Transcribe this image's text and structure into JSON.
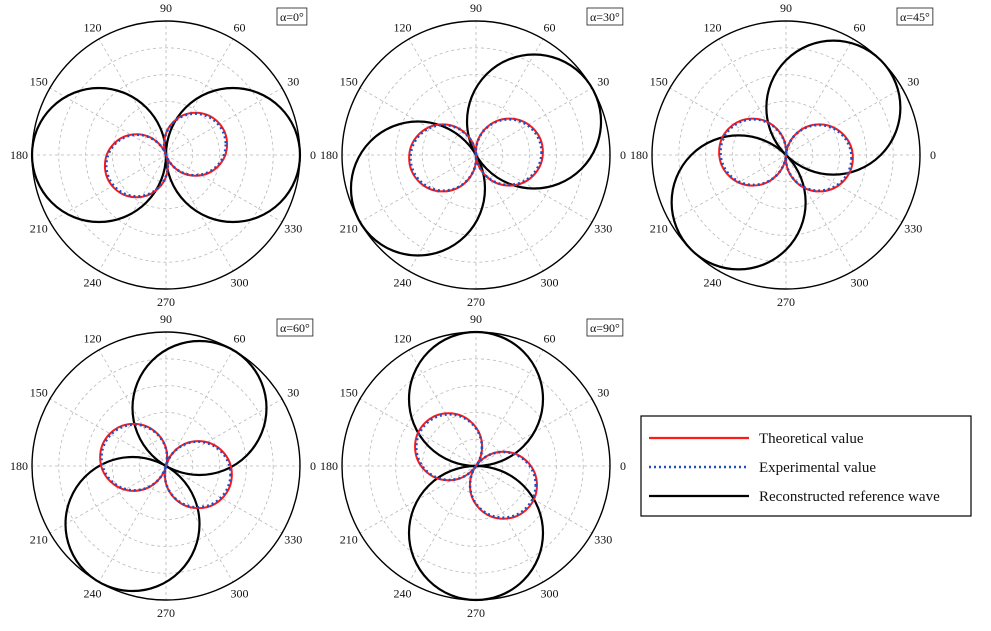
{
  "chart_data": [
    {
      "type": "polar",
      "title": "α=0°",
      "angle_ticks": [
        "0",
        "30",
        "60",
        "90",
        "120",
        "150",
        "180",
        "210",
        "240",
        "270",
        "300",
        "330"
      ],
      "grid": true,
      "series": [
        {
          "key": "reference",
          "lobes": [
            {
              "angle_deg": 0,
              "diameter": 1.0
            },
            {
              "angle_deg": 180,
              "diameter": 1.0
            }
          ]
        },
        {
          "key": "theoretical",
          "lobes": [
            {
              "angle_deg": 20,
              "diameter": 0.47
            },
            {
              "angle_deg": 200,
              "diameter": 0.47
            }
          ]
        },
        {
          "key": "experimental",
          "lobes": [
            {
              "angle_deg": 20,
              "diameter": 0.46
            },
            {
              "angle_deg": 200,
              "diameter": 0.46
            }
          ]
        }
      ]
    },
    {
      "type": "polar",
      "title": "α=30°",
      "angle_ticks": [
        "0",
        "30",
        "60",
        "90",
        "120",
        "150",
        "180",
        "210",
        "240",
        "270",
        "300",
        "330"
      ],
      "grid": true,
      "series": [
        {
          "key": "reference",
          "lobes": [
            {
              "angle_deg": 30,
              "diameter": 1.0
            },
            {
              "angle_deg": 210,
              "diameter": 1.0
            }
          ]
        },
        {
          "key": "theoretical",
          "lobes": [
            {
              "angle_deg": 5,
              "diameter": 0.5
            },
            {
              "angle_deg": 185,
              "diameter": 0.5
            }
          ]
        },
        {
          "key": "experimental",
          "lobes": [
            {
              "angle_deg": 5,
              "diameter": 0.49
            },
            {
              "angle_deg": 185,
              "diameter": 0.49
            }
          ]
        }
      ]
    },
    {
      "type": "polar",
      "title": "α=45°",
      "angle_ticks": [
        "0",
        "30",
        "60",
        "90",
        "120",
        "150",
        "180",
        "210",
        "240",
        "270",
        "300",
        "330"
      ],
      "grid": true,
      "series": [
        {
          "key": "reference",
          "lobes": [
            {
              "angle_deg": 45,
              "diameter": 1.0
            },
            {
              "angle_deg": 225,
              "diameter": 1.0
            }
          ]
        },
        {
          "key": "theoretical",
          "lobes": [
            {
              "angle_deg": -5,
              "diameter": 0.5
            },
            {
              "angle_deg": 175,
              "diameter": 0.5
            }
          ]
        },
        {
          "key": "experimental",
          "lobes": [
            {
              "angle_deg": -5,
              "diameter": 0.49
            },
            {
              "angle_deg": 175,
              "diameter": 0.49
            }
          ]
        }
      ]
    },
    {
      "type": "polar",
      "title": "α=60°",
      "angle_ticks": [
        "0",
        "30",
        "60",
        "90",
        "120",
        "150",
        "180",
        "210",
        "240",
        "270",
        "300",
        "330"
      ],
      "grid": true,
      "series": [
        {
          "key": "reference",
          "lobes": [
            {
              "angle_deg": 60,
              "diameter": 1.0
            },
            {
              "angle_deg": 240,
              "diameter": 1.0
            }
          ]
        },
        {
          "key": "theoretical",
          "lobes": [
            {
              "angle_deg": -15,
              "diameter": 0.5
            },
            {
              "angle_deg": 165,
              "diameter": 0.5
            }
          ]
        },
        {
          "key": "experimental",
          "lobes": [
            {
              "angle_deg": -15,
              "diameter": 0.49
            },
            {
              "angle_deg": 165,
              "diameter": 0.49
            }
          ]
        }
      ]
    },
    {
      "type": "polar",
      "title": "α=90°",
      "angle_ticks": [
        "0",
        "30",
        "60",
        "90",
        "120",
        "150",
        "180",
        "210",
        "240",
        "270",
        "300",
        "330"
      ],
      "grid": true,
      "series": [
        {
          "key": "reference",
          "lobes": [
            {
              "angle_deg": 90,
              "diameter": 1.0
            },
            {
              "angle_deg": 270,
              "diameter": 1.0
            }
          ]
        },
        {
          "key": "theoretical",
          "lobes": [
            {
              "angle_deg": -35,
              "diameter": 0.5
            },
            {
              "angle_deg": 145,
              "diameter": 0.5
            }
          ]
        },
        {
          "key": "experimental",
          "lobes": [
            {
              "angle_deg": -35,
              "diameter": 0.49
            },
            {
              "angle_deg": 145,
              "diameter": 0.49
            }
          ]
        }
      ]
    }
  ],
  "legend": {
    "placement": "right",
    "items": [
      {
        "key": "theoretical",
        "label": "Theoretical value",
        "color": "#ff1a1a",
        "style": "solid"
      },
      {
        "key": "experimental",
        "label": "Experimental value",
        "color": "#1f4fbf",
        "style": "dotted"
      },
      {
        "key": "reference",
        "label": "Reconstructed reference wave",
        "color": "#000000",
        "style": "solid"
      }
    ]
  }
}
